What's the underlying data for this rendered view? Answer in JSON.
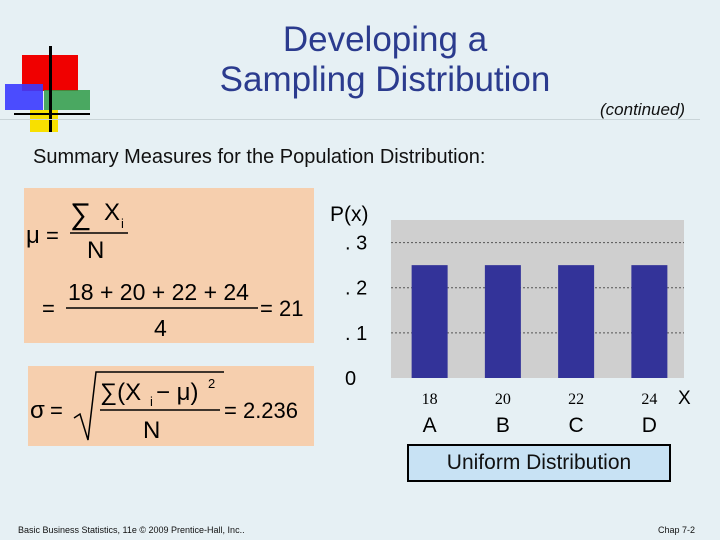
{
  "slide": {
    "title_line1": "Developing a",
    "title_line2": "Sampling Distribution",
    "continued": "(continued)",
    "summary": "Summary Measures for the Population Distribution:",
    "footer_left": "Basic Business Statistics, 11e © 2009 Prentice-Hall, Inc..",
    "footer_right": "Chap 7-2",
    "legend": "Uniform Distribution"
  },
  "formulas": {
    "mu_symbol": "μ",
    "equals": "=",
    "sigma_sum": "∑",
    "xi": "X",
    "sub_i": "i",
    "n": "N",
    "numerator": "18 + 20 + 22 + 24",
    "denominator": "4",
    "mu_result": "= 21",
    "sigma_symbol": "σ",
    "sd_numerator": "∑(X",
    "sd_numerator_tail": " − μ)",
    "square": "2",
    "sd_result": "= 2.236"
  },
  "chart_data": {
    "type": "bar",
    "ylabel": "P(x)",
    "xlabel": "X",
    "categories": [
      "18",
      "20",
      "22",
      "24"
    ],
    "category_letters": [
      "A",
      "B",
      "C",
      "D"
    ],
    "values": [
      0.25,
      0.25,
      0.25,
      0.25
    ],
    "y_ticks": [
      {
        "value": 0,
        "label": "0"
      },
      {
        "value": 0.1,
        "label": ". 1"
      },
      {
        "value": 0.2,
        "label": ". 2"
      },
      {
        "value": 0.3,
        "label": ". 3"
      }
    ],
    "ylim": [
      0,
      0.35
    ],
    "bar_color": "#333399",
    "grid": true
  }
}
